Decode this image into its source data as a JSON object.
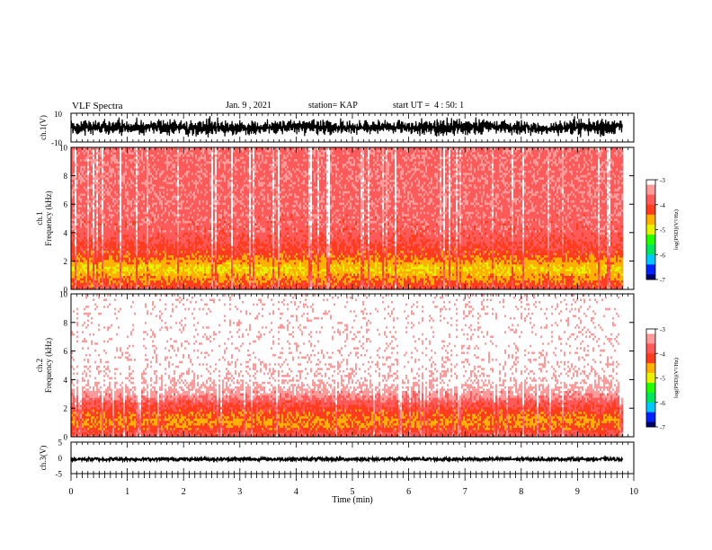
{
  "header": {
    "title": "VLF Spectra",
    "date": "Jan. 9 , 2021",
    "station": "station= KAP",
    "start": "start UT =  4 : 50: 1"
  },
  "chart_data": [
    {
      "type": "line",
      "panel": "ch1-waveform",
      "ylabel": "ch.1(V)",
      "ylim": [
        -10,
        10
      ],
      "ytick_labels": [
        "10",
        "-10"
      ],
      "xlim": [
        0,
        10
      ],
      "data_extent_min": 9.8,
      "envelope": {
        "x": [
          0,
          0.5,
          1,
          1.5,
          2,
          2.5,
          3,
          3.5,
          4,
          4.5,
          5,
          5.5,
          6,
          6.5,
          7,
          7.5,
          8,
          8.5,
          9,
          9.5,
          9.8
        ],
        "upper": [
          6,
          7,
          7,
          6,
          7,
          8,
          6,
          6,
          7,
          7,
          6,
          6,
          5,
          7,
          8,
          6,
          7,
          4,
          8,
          8,
          7
        ],
        "lower": [
          -6,
          -7,
          -6,
          -5,
          -7,
          -8,
          -7,
          -6,
          -5,
          -7,
          -6,
          -6,
          -5,
          -7,
          -7,
          -4,
          -7,
          -6,
          -7,
          -7,
          -6
        ]
      },
      "color": "#000000"
    },
    {
      "type": "heatmap",
      "panel": "ch1-spectrogram",
      "ylabel": "Frequency (kHz)",
      "channel_label": "ch.1",
      "ylim": [
        0,
        10
      ],
      "ytick_labels": [
        "0",
        "2",
        "4",
        "6",
        "8",
        "10"
      ],
      "xlim": [
        0,
        10
      ],
      "data_extent_min": 9.8,
      "band_profile": {
        "freq_khz": [
          0,
          0.5,
          1.0,
          1.5,
          2.0,
          2.5,
          3.0,
          3.5,
          4.0,
          6.0,
          8.0,
          10.0
        ],
        "log_psd": [
          -4.0,
          -4.3,
          -4.6,
          -4.8,
          -4.5,
          -4.2,
          -4.1,
          -3.9,
          -3.8,
          -3.7,
          -3.7,
          -3.7
        ]
      }
    },
    {
      "type": "heatmap",
      "panel": "ch2-spectrogram",
      "ylabel": "Frequency (kHz)",
      "channel_label": "ch.2",
      "ylim": [
        0,
        10
      ],
      "ytick_labels": [
        "0",
        "2",
        "4",
        "6",
        "8",
        "10"
      ],
      "xlim": [
        0,
        10
      ],
      "data_extent_min": 9.8,
      "band_profile": {
        "freq_khz": [
          0,
          0.5,
          1.0,
          1.5,
          2.0,
          2.5,
          3.0,
          4.0,
          6.0,
          8.0,
          10.0
        ],
        "log_psd": [
          -3.8,
          -4.2,
          -4.5,
          -4.3,
          -4.1,
          -3.8,
          -3.4,
          -3.1,
          -3.0,
          -3.0,
          -3.0
        ]
      }
    },
    {
      "type": "line",
      "panel": "ch3-waveform",
      "ylabel": "ch.3(V)",
      "ylim": [
        -5,
        5
      ],
      "ytick_labels": [
        "5",
        "0",
        "-5"
      ],
      "xlim": [
        0,
        10
      ],
      "xlabel": "Time (min)",
      "xtick_labels": [
        "0",
        "1",
        "2",
        "3",
        "4",
        "5",
        "6",
        "7",
        "8",
        "9",
        "10"
      ],
      "data_extent_min": 9.8,
      "level": -0.4,
      "band_halfwidth": 0.5,
      "color": "#000000"
    }
  ],
  "colorbars": [
    {
      "name": "ch1-colorbar",
      "label": "log(PSD)(V²/Hz)",
      "range": [
        -7,
        -3
      ],
      "tick_labels": [
        "-3",
        "-4",
        "-5",
        "-6",
        "-7"
      ]
    },
    {
      "name": "ch2-colorbar",
      "label": "log(PSD)(V²/Hz)",
      "range": [
        -7,
        -3
      ],
      "tick_labels": [
        "-3",
        "-4",
        "-5",
        "-6",
        "-7"
      ]
    }
  ],
  "colorscale": [
    "#000066",
    "#0022ff",
    "#00c8ff",
    "#00e65a",
    "#22ff00",
    "#e6f200",
    "#ffb000",
    "#ff3c1e",
    "#ff5a5a",
    "#ff9a9a",
    "#ffffff"
  ]
}
